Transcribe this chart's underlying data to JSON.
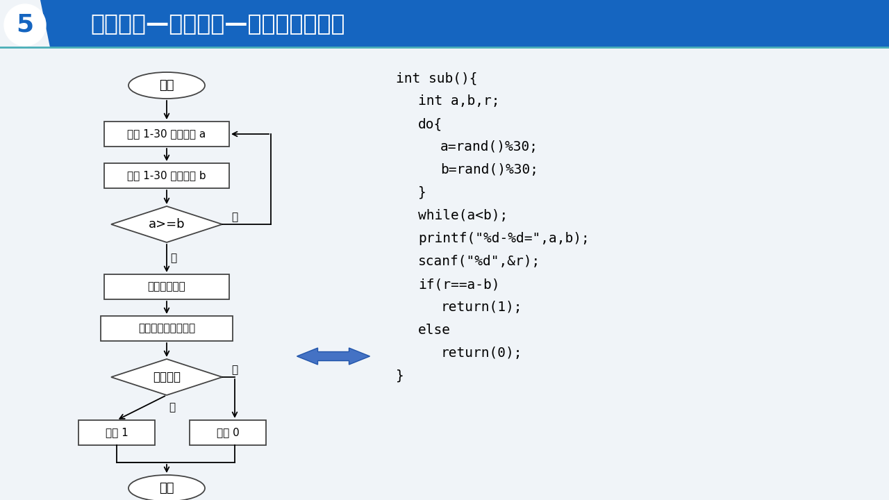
{
  "title": "系统设计—详细设计—减法题模块设计",
  "title_number": "5",
  "bg_color": "#f0f4f8",
  "header_bg": "#1565C0",
  "header_text_color": "#ffffff",
  "arrow_color": "#4472C4",
  "code_lines": [
    [
      "int sub(){",
      0
    ],
    [
      "    int a,b,r;",
      1
    ],
    [
      "    do{",
      1
    ],
    [
      "        a=rand()%30;",
      2
    ],
    [
      "        b=rand()%30;",
      2
    ],
    [
      "    }",
      1
    ],
    [
      "    while(a<b);",
      1
    ],
    [
      "    printf(\"%d-%d=\",a,b);",
      1
    ],
    [
      "    scanf(\"%d\",&r);",
      1
    ],
    [
      "    if(r==a-b)",
      1
    ],
    [
      "        return(1);",
      2
    ],
    [
      "    else",
      1
    ],
    [
      "        return(0);",
      2
    ],
    [
      "}",
      0
    ]
  ]
}
